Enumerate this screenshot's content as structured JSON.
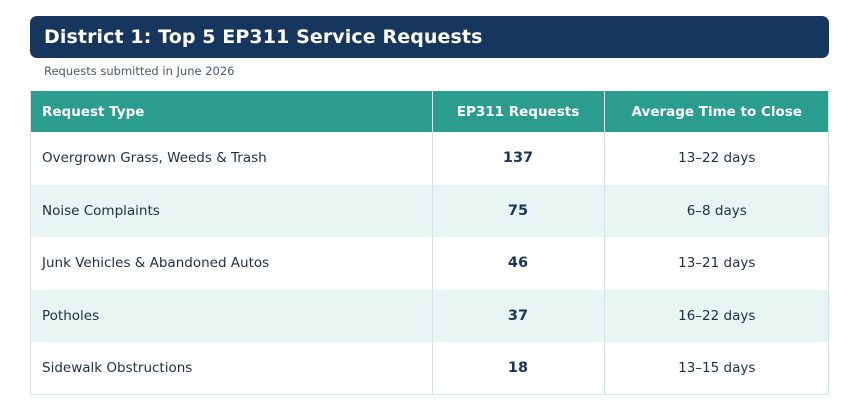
{
  "header": {
    "title": "District 1: Top 5 EP311 Service Requests",
    "subtitle": "Requests submitted in June 2026"
  },
  "table": {
    "columns": [
      "Request Type",
      "EP311 Requests",
      "Average Time to Close"
    ],
    "rows": [
      {
        "type": "Overgrown Grass, Weeds & Trash",
        "requests": "137",
        "time_to_close": "13–22 days"
      },
      {
        "type": "Noise Complaints",
        "requests": "75",
        "time_to_close": "6–8 days"
      },
      {
        "type": "Junk Vehicles & Abandoned Autos",
        "requests": "46",
        "time_to_close": "13–21 days"
      },
      {
        "type": "Potholes",
        "requests": "37",
        "time_to_close": "16–22 days"
      },
      {
        "type": "Sidewalk Obstructions",
        "requests": "18",
        "time_to_close": "13–15 days"
      }
    ]
  },
  "colors": {
    "title_bar": "#17365d",
    "header_row": "#2a9d8f",
    "stripe_row": "#e8f5f2"
  }
}
